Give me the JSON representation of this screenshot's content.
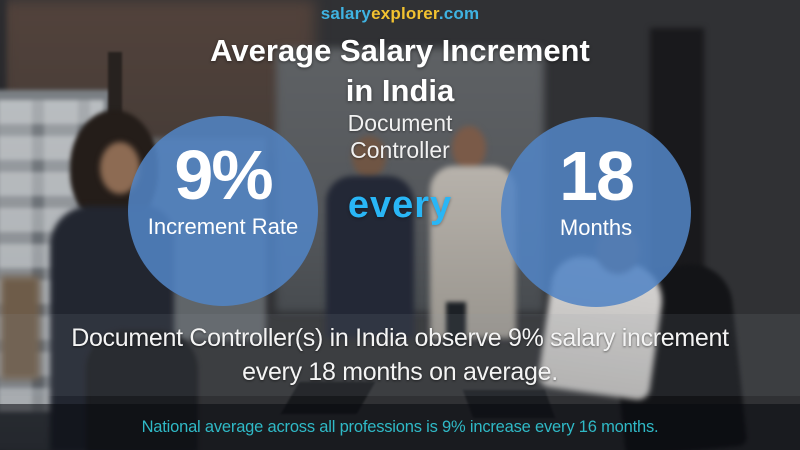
{
  "brand": {
    "salary": "salary",
    "explorer": "explorer",
    "domain": ".com"
  },
  "title": {
    "line1": "Average Salary Increment",
    "line2": "in India"
  },
  "subtitle": {
    "line1": "Document",
    "line2": "Controller"
  },
  "connector": {
    "label": "every"
  },
  "stats": {
    "increment": {
      "value": "9%",
      "label": "Increment Rate"
    },
    "period": {
      "value": "18",
      "label": "Months"
    }
  },
  "summary": {
    "line1": "Document Controller(s) in India observe 9% salary increment",
    "line2": "every 18 months on average."
  },
  "footer": {
    "text": "National average across all professions is 9% increase every 16 months."
  },
  "colors": {
    "accent_cyan": "#29b6f6",
    "brand_blue": "#3fb3e2",
    "brand_yellow": "#f2c230",
    "footer_teal": "#2fb9c6",
    "circle_blue": "#5284c4"
  }
}
